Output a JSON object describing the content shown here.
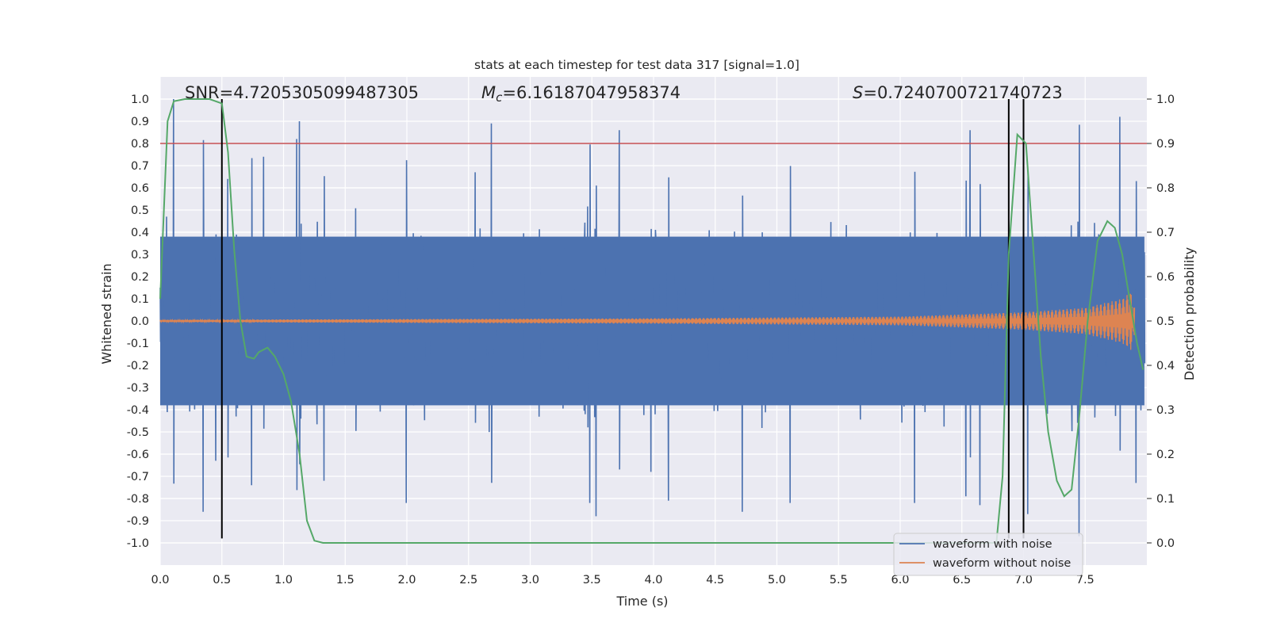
{
  "chart_data": {
    "type": "line",
    "title": "stats at each timestep for test data 317 [signal=1.0]",
    "xlabel": "Time (s)",
    "ylabel": "Whitened strain",
    "y2label": "Detection probability",
    "xlim": [
      0.0,
      8.0
    ],
    "ylim": [
      -1.1,
      1.1
    ],
    "y2lim": [
      -0.05,
      1.05
    ],
    "xticks": [
      0.0,
      0.5,
      1.0,
      1.5,
      2.0,
      2.5,
      3.0,
      3.5,
      4.0,
      4.5,
      5.0,
      5.5,
      6.0,
      6.5,
      7.0,
      7.5
    ],
    "xtick_labels": [
      "0.0",
      "0.5",
      "1.0",
      "1.5",
      "2.0",
      "2.5",
      "3.0",
      "3.5",
      "4.0",
      "4.5",
      "5.0",
      "5.5",
      "6.0",
      "6.5",
      "7.0",
      "7.5"
    ],
    "yticks": [
      1.0,
      0.9,
      0.8,
      0.7,
      0.6,
      0.5,
      0.4,
      0.3,
      0.2,
      0.1,
      0.0,
      -0.1,
      -0.2,
      -0.3,
      -0.4,
      -0.5,
      -0.6,
      -0.7,
      -0.8,
      -0.9,
      -1.0
    ],
    "ytick_labels": [
      "1.0",
      "0.9",
      "0.8",
      "0.7",
      "0.6",
      "0.5",
      "0.4",
      "0.3",
      "0.2",
      "0.1",
      "0.0",
      "-0.1",
      "-0.2",
      "-0.3",
      "-0.4",
      "-0.5",
      "-0.6",
      "-0.7",
      "-0.8",
      "-0.9",
      "-1.0"
    ],
    "y2ticks": [
      1.0,
      0.9,
      0.8,
      0.7,
      0.6,
      0.5,
      0.4,
      0.3,
      0.2,
      0.1,
      0.0
    ],
    "y2tick_labels": [
      "1.0",
      "0.9",
      "0.8",
      "0.7",
      "0.6",
      "0.5",
      "0.4",
      "0.3",
      "0.2",
      "0.1",
      "0.0"
    ],
    "grid": true,
    "legend_position": "lower-right",
    "annotations": {
      "snr_label": "SNR=4.7205305099487305",
      "mc_symbol": "M",
      "mc_subscript": "c",
      "mc_value": "=6.16187047958374",
      "s_symbol": "S",
      "s_value": "=0.7240700721740723"
    },
    "threshold_line": {
      "axis": "right",
      "value": 0.9,
      "color": "#c44e52"
    },
    "vertical_markers": [
      {
        "x": 0.5,
        "y_top": 1.0,
        "y_bottom": -0.98
      },
      {
        "x": 6.88,
        "y_top": 1.0,
        "y_bottom": -0.98
      },
      {
        "x": 7.0,
        "y_top": 1.0,
        "y_bottom": -0.98
      }
    ],
    "series": [
      {
        "name": "waveform with noise",
        "color": "#4c72b0",
        "kind": "noise",
        "typical_amplitude": 0.38,
        "peak_values": [
          {
            "t": 0.05,
            "v": 0.47
          },
          {
            "t": 0.11,
            "v": 1.0
          },
          {
            "t": 0.35,
            "v": -0.86
          },
          {
            "t": 0.45,
            "v": -0.63
          },
          {
            "t": 0.55,
            "v": 0.64
          },
          {
            "t": 0.74,
            "v": -0.74
          },
          {
            "t": 0.84,
            "v": 0.74
          },
          {
            "t": 1.13,
            "v": 0.9
          },
          {
            "t": 1.11,
            "v": 0.82
          },
          {
            "t": 1.33,
            "v": -0.72
          },
          {
            "t": 2.0,
            "v": -0.82
          },
          {
            "t": 2.56,
            "v": 0.67
          },
          {
            "t": 2.69,
            "v": 0.89
          },
          {
            "t": 3.49,
            "v": -0.82
          },
          {
            "t": 3.54,
            "v": -0.88
          },
          {
            "t": 3.73,
            "v": 0.86
          },
          {
            "t": 3.99,
            "v": -0.68
          },
          {
            "t": 4.13,
            "v": -0.81
          },
          {
            "t": 4.73,
            "v": -0.86
          },
          {
            "t": 5.12,
            "v": -0.82
          },
          {
            "t": 6.13,
            "v": -0.82
          },
          {
            "t": 6.55,
            "v": -0.79
          },
          {
            "t": 6.58,
            "v": 0.86
          },
          {
            "t": 6.66,
            "v": -0.83
          },
          {
            "t": 7.05,
            "v": -0.87
          },
          {
            "t": 7.47,
            "v": -0.97
          },
          {
            "t": 7.8,
            "v": 0.92
          },
          {
            "t": 7.93,
            "v": -0.73
          }
        ]
      },
      {
        "name": "waveform without noise",
        "color": "#dd8452",
        "kind": "chirp",
        "envelope": [
          {
            "t": 0.0,
            "v": 0.005
          },
          {
            "t": 4.0,
            "v": 0.012
          },
          {
            "t": 6.0,
            "v": 0.02
          },
          {
            "t": 7.0,
            "v": 0.04
          },
          {
            "t": 7.5,
            "v": 0.06
          },
          {
            "t": 7.8,
            "v": 0.1
          },
          {
            "t": 7.87,
            "v": 0.13
          },
          {
            "t": 7.9,
            "v": 0.06
          }
        ]
      },
      {
        "name": "detection probability",
        "color": "#55a868",
        "axis": "right",
        "points": [
          {
            "t": 0.0,
            "v": 0.55
          },
          {
            "t": 0.06,
            "v": 0.95
          },
          {
            "t": 0.11,
            "v": 0.995
          },
          {
            "t": 0.2,
            "v": 1.0
          },
          {
            "t": 0.4,
            "v": 1.0
          },
          {
            "t": 0.5,
            "v": 0.99
          },
          {
            "t": 0.55,
            "v": 0.88
          },
          {
            "t": 0.6,
            "v": 0.66
          },
          {
            "t": 0.65,
            "v": 0.5
          },
          {
            "t": 0.7,
            "v": 0.42
          },
          {
            "t": 0.76,
            "v": 0.415
          },
          {
            "t": 0.8,
            "v": 0.43
          },
          {
            "t": 0.87,
            "v": 0.44
          },
          {
            "t": 0.93,
            "v": 0.42
          },
          {
            "t": 1.0,
            "v": 0.38
          },
          {
            "t": 1.06,
            "v": 0.32
          },
          {
            "t": 1.13,
            "v": 0.2
          },
          {
            "t": 1.19,
            "v": 0.05
          },
          {
            "t": 1.25,
            "v": 0.005
          },
          {
            "t": 1.32,
            "v": 0.0
          },
          {
            "t": 6.78,
            "v": 0.0
          },
          {
            "t": 6.83,
            "v": 0.15
          },
          {
            "t": 6.88,
            "v": 0.65
          },
          {
            "t": 6.95,
            "v": 0.92
          },
          {
            "t": 7.02,
            "v": 0.9
          },
          {
            "t": 7.07,
            "v": 0.7
          },
          {
            "t": 7.14,
            "v": 0.42
          },
          {
            "t": 7.2,
            "v": 0.25
          },
          {
            "t": 7.27,
            "v": 0.14
          },
          {
            "t": 7.33,
            "v": 0.105
          },
          {
            "t": 7.39,
            "v": 0.12
          },
          {
            "t": 7.45,
            "v": 0.28
          },
          {
            "t": 7.52,
            "v": 0.5
          },
          {
            "t": 7.6,
            "v": 0.68
          },
          {
            "t": 7.68,
            "v": 0.725
          },
          {
            "t": 7.74,
            "v": 0.71
          },
          {
            "t": 7.8,
            "v": 0.65
          },
          {
            "t": 7.86,
            "v": 0.55
          },
          {
            "t": 7.92,
            "v": 0.45
          },
          {
            "t": 7.97,
            "v": 0.39
          }
        ]
      }
    ]
  }
}
